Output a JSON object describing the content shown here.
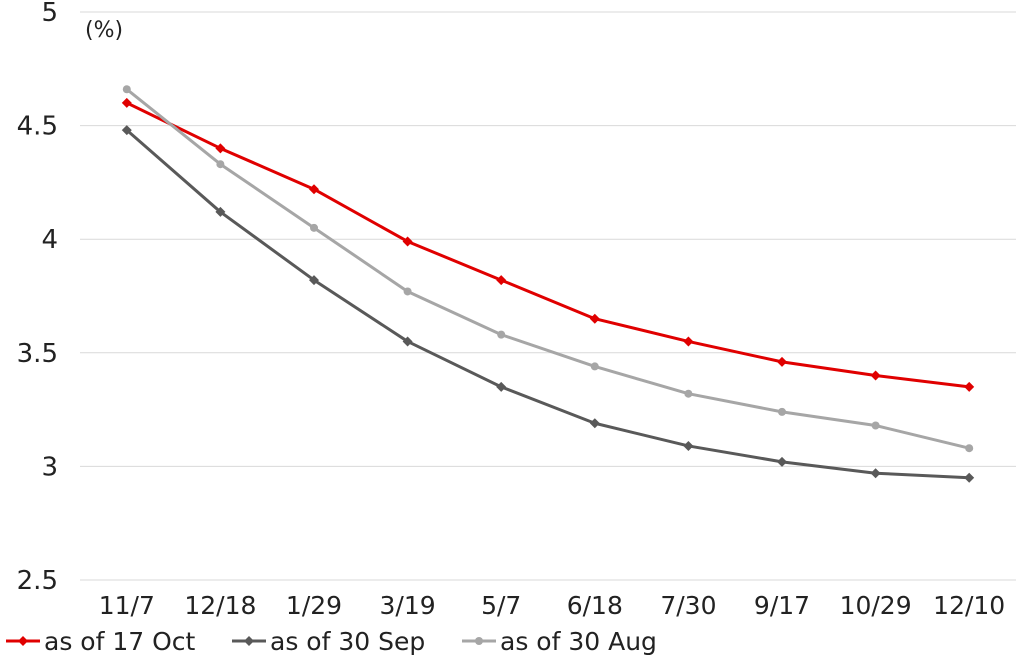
{
  "chart_data": {
    "type": "line",
    "unit_label": "(%)",
    "categories": [
      "11/7",
      "12/18",
      "1/29",
      "3/19",
      "5/7",
      "6/18",
      "7/30",
      "9/17",
      "10/29",
      "12/10"
    ],
    "ylim": [
      2.5,
      5
    ],
    "yticks": [
      "2.5",
      "3",
      "3.5",
      "4",
      "4.5",
      "5"
    ],
    "grid": true,
    "legend_position": "bottom",
    "series": [
      {
        "name": "as of 17 Oct",
        "color": "#e00000",
        "marker": "diamond",
        "values": [
          4.6,
          4.4,
          4.22,
          3.99,
          3.82,
          3.65,
          3.55,
          3.46,
          3.4,
          3.35
        ]
      },
      {
        "name": "as of 30 Sep",
        "color": "#595959",
        "marker": "diamond",
        "values": [
          4.48,
          4.12,
          3.82,
          3.55,
          3.35,
          3.19,
          3.09,
          3.02,
          2.97,
          2.95
        ]
      },
      {
        "name": "as of 30 Aug",
        "color": "#a6a6a6",
        "marker": "circle",
        "values": [
          4.66,
          4.33,
          4.05,
          3.77,
          3.58,
          3.44,
          3.32,
          3.24,
          3.18,
          3.08
        ]
      }
    ]
  }
}
